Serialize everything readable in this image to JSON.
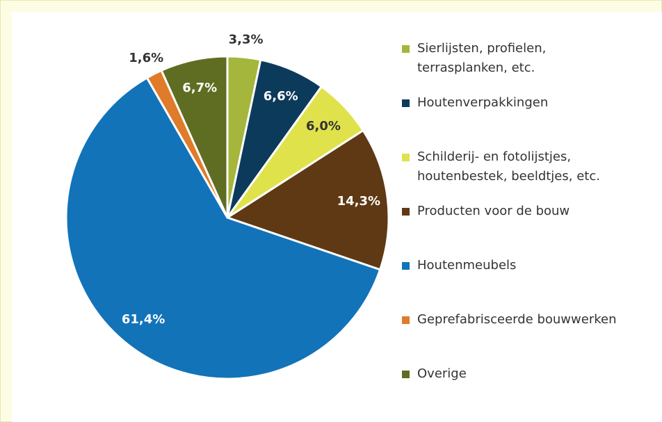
{
  "chart_data": {
    "type": "pie",
    "series": [
      {
        "name": "Sierlijsten, profielen, terrasplanken, etc.",
        "color": "#a4b63b",
        "values": [
          3.3
        ],
        "value_labels": [
          "3,3%"
        ]
      },
      {
        "name": "Houtenverpakkingen",
        "color": "#0c3a5b",
        "values": [
          6.6
        ],
        "value_labels": [
          "6,6%"
        ]
      },
      {
        "name": "Schilderij- en fotolijstjes, houtenbestek, beeldtjes, etc.",
        "color": "#dfe24b",
        "values": [
          6.0
        ],
        "value_labels": [
          "6,0%"
        ]
      },
      {
        "name": "Producten voor de bouw",
        "color": "#5f3914",
        "values": [
          14.3
        ],
        "value_labels": [
          "14,3%"
        ]
      },
      {
        "name": "Houtenmeubels",
        "color": "#1273b9",
        "values": [
          61.4
        ],
        "value_labels": [
          "61,4%"
        ]
      },
      {
        "name": "Geprefabrisceerde bouwwerken",
        "color": "#df7b2b",
        "values": [
          1.6
        ],
        "value_labels": [
          "1,6%"
        ]
      },
      {
        "name": "Overige",
        "color": "#5e6d21",
        "values": [
          6.7
        ],
        "value_labels": [
          "6,7%"
        ]
      }
    ]
  }
}
